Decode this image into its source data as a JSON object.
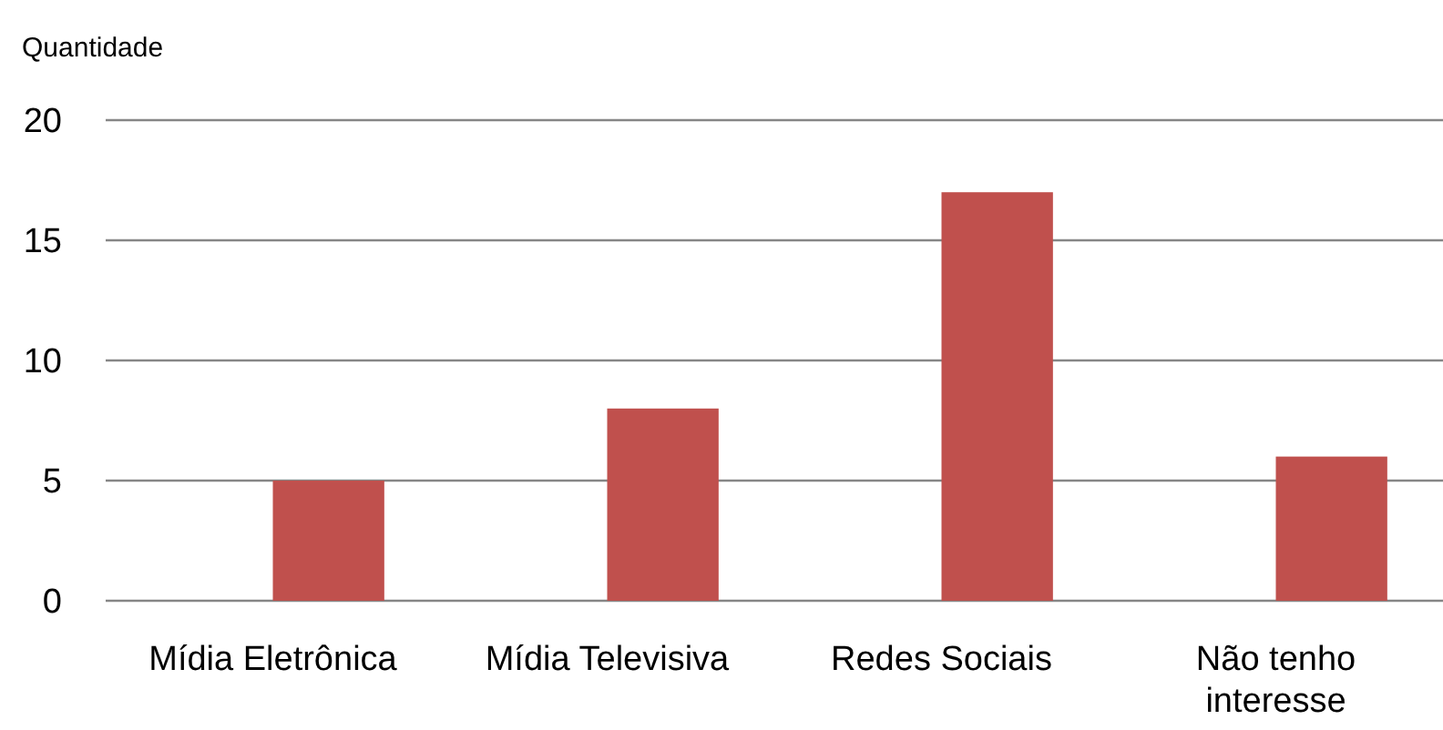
{
  "chart_data": {
    "type": "bar",
    "ylabel": "Quantidade",
    "categories": [
      "Mídia Eletrônica",
      "Mídia Televisiva",
      "Redes Sociais",
      "Não tenho interesse"
    ],
    "series": [
      {
        "values": [
          null,
          null,
          null,
          null
        ]
      },
      {
        "color": "#c0504d",
        "values": [
          5,
          8,
          17,
          6
        ]
      }
    ],
    "ylim": [
      0,
      20
    ],
    "yticks": [
      0,
      5,
      10,
      15,
      20
    ],
    "grid": "y"
  }
}
